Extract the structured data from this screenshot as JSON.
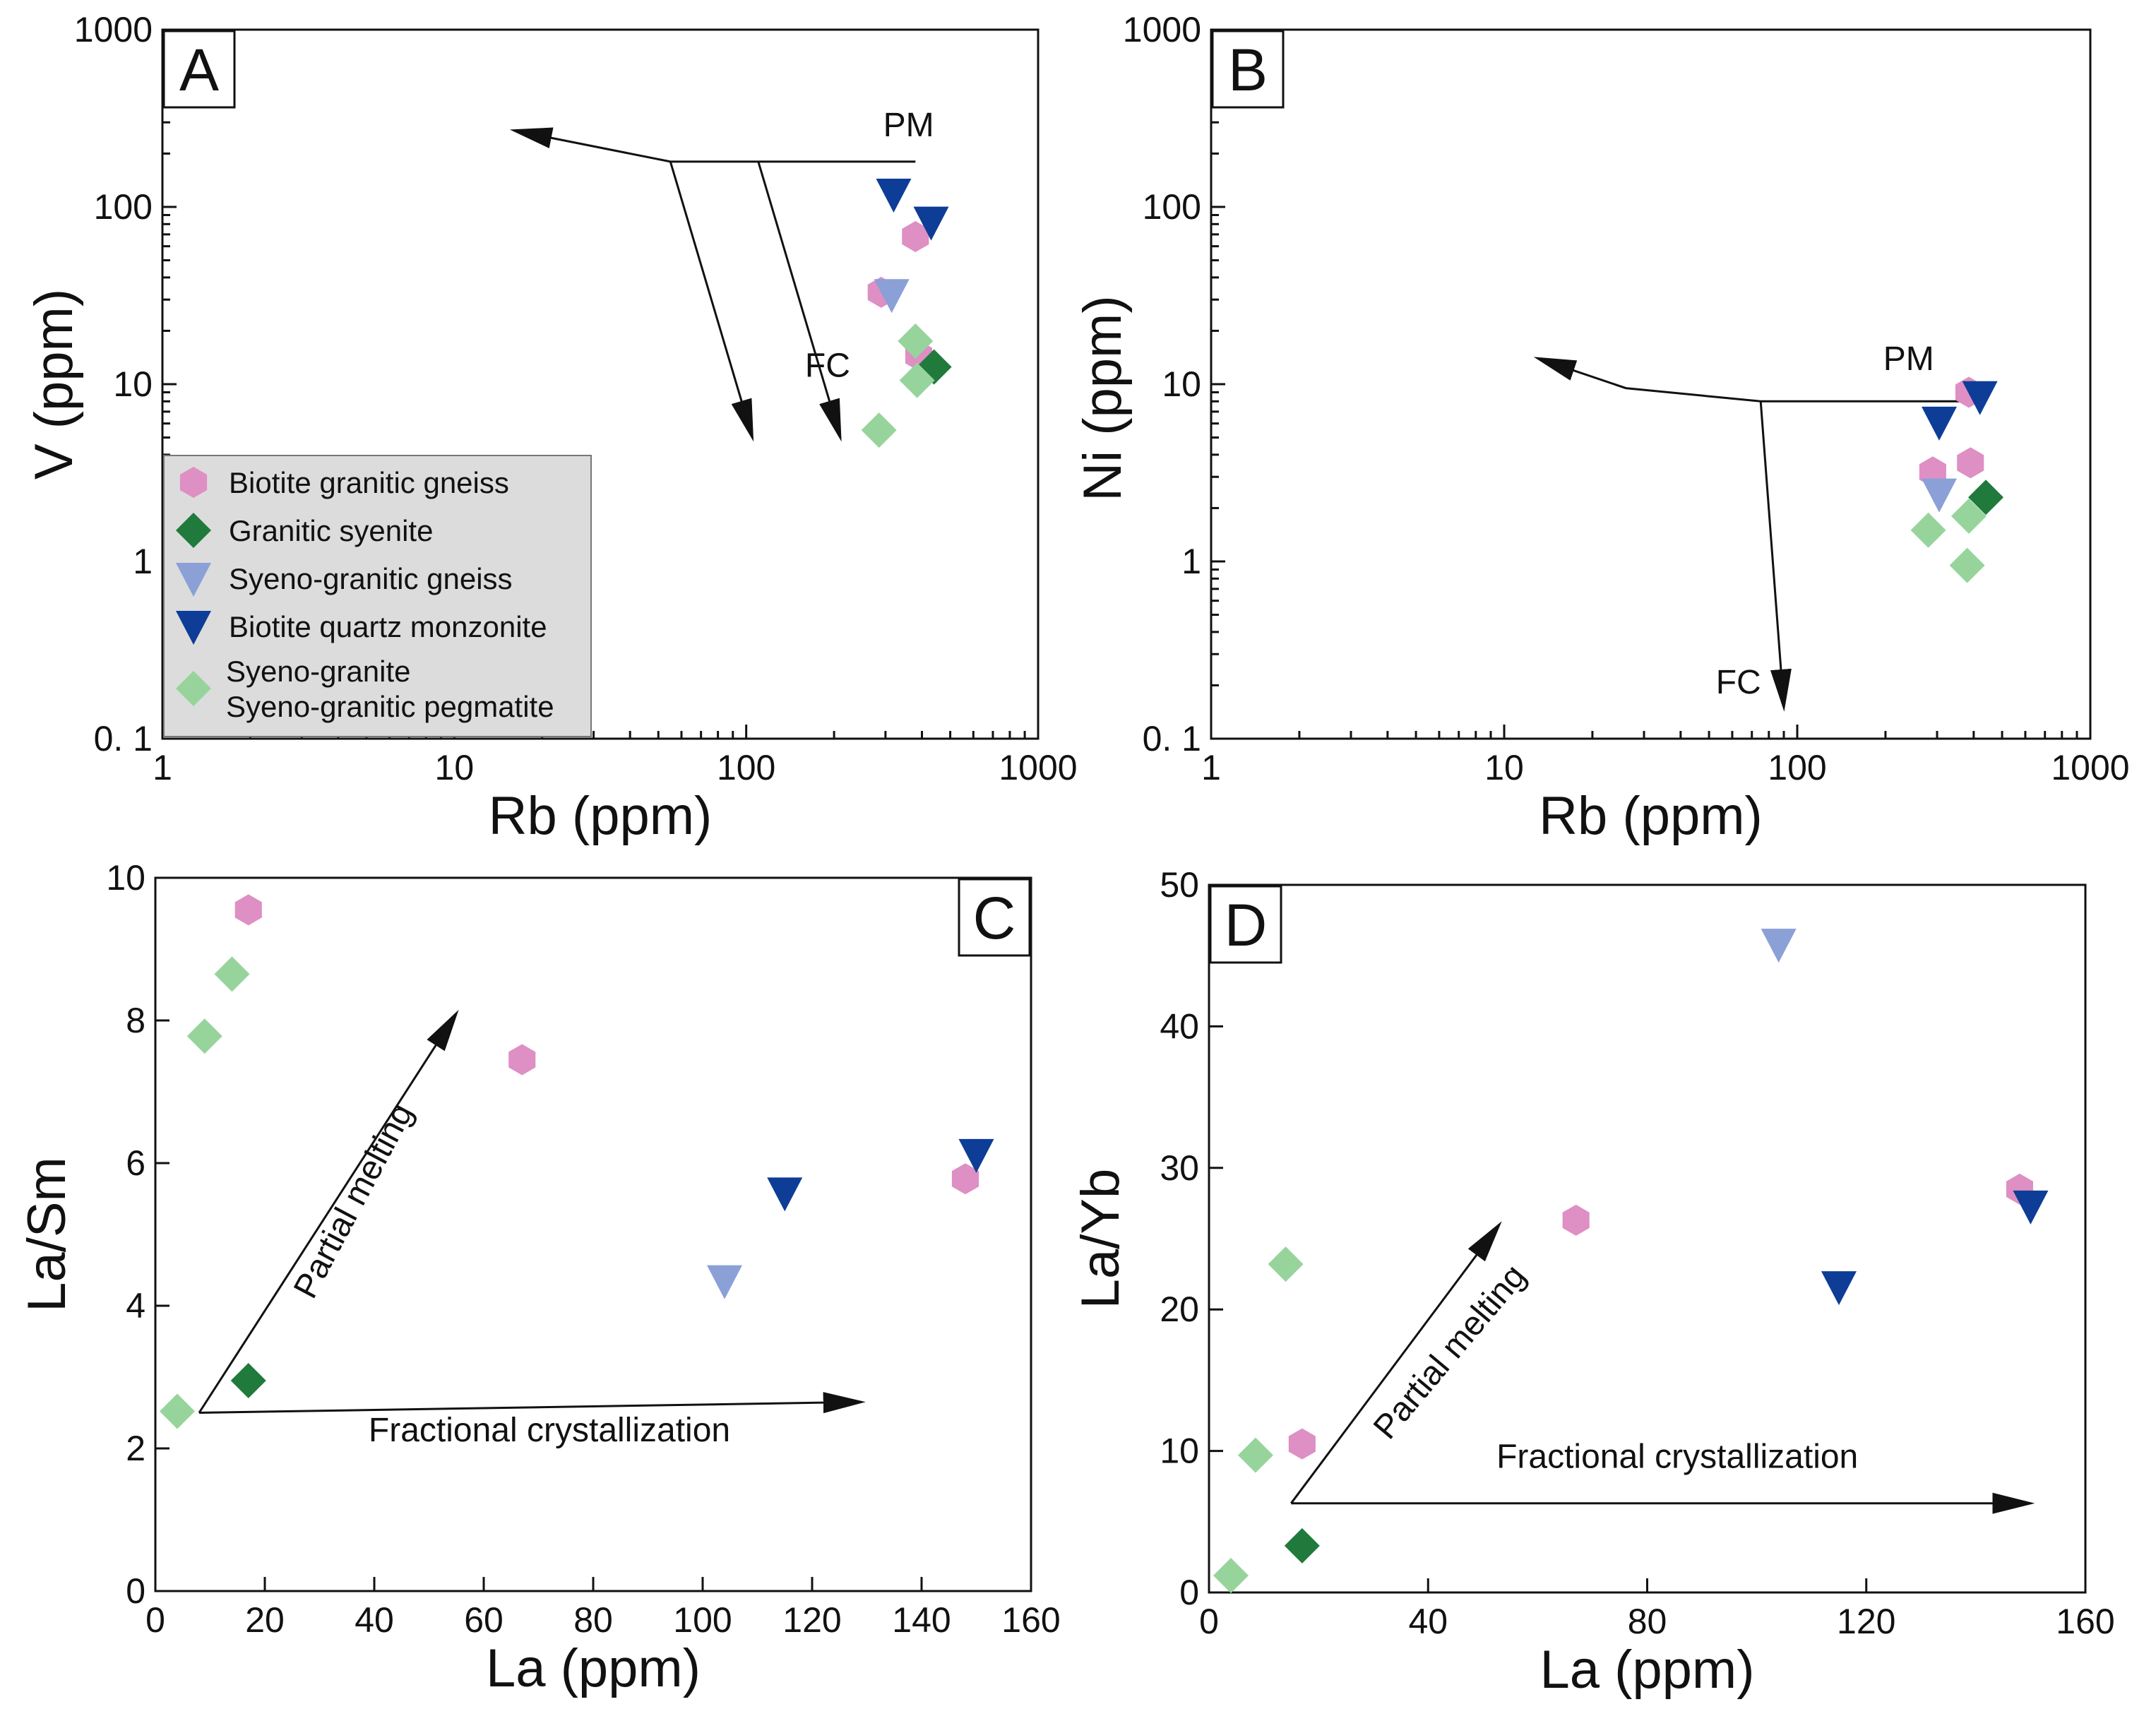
{
  "colors": {
    "biotite_granitic_gneiss": "#de8fc4",
    "granitic_syenite": "#1f7a3c",
    "syeno_granitic_gneiss": "#8aa0d6",
    "biotite_quartz_monzonite": "#0d3d96",
    "syeno_granite": "#97d49c"
  },
  "legend": {
    "entries": [
      {
        "key": "biotite_granitic_gneiss",
        "marker": "hexagon",
        "lines": [
          "Biotite granitic gneiss"
        ]
      },
      {
        "key": "granitic_syenite",
        "marker": "diamond",
        "lines": [
          "Granitic syenite"
        ]
      },
      {
        "key": "syeno_granitic_gneiss",
        "marker": "triangle-down",
        "lines": [
          "Syeno-granitic gneiss"
        ]
      },
      {
        "key": "biotite_quartz_monzonite",
        "marker": "triangle-down",
        "lines": [
          "Biotite quartz monzonite"
        ]
      },
      {
        "key": "syeno_granite",
        "marker": "diamond",
        "lines": [
          "Syeno-granite",
          "Syeno-granitic pegmatite"
        ]
      }
    ]
  },
  "chart_data": [
    {
      "panel": "A",
      "type": "scatter",
      "xlabel": "Rb (ppm)",
      "ylabel": "V (ppm)",
      "xscale": "log",
      "yscale": "log",
      "xlim": [
        1,
        1000
      ],
      "ylim": [
        0.1,
        1000
      ],
      "xticks": [
        1,
        10,
        100,
        1000
      ],
      "xtick_labels": [
        "1",
        "10",
        "100",
        "1000"
      ],
      "yticks": [
        0.1,
        1,
        10,
        100,
        1000
      ],
      "ytick_labels": [
        "0. 1",
        "1",
        "10",
        "100",
        "1000"
      ],
      "series": [
        {
          "name": "Biotite granitic gneiss",
          "key": "biotite_granitic_gneiss",
          "marker": "hexagon",
          "points": [
            [
              380,
              68
            ],
            [
              290,
              33
            ],
            [
              390,
              14.5
            ]
          ]
        },
        {
          "name": "Granitic syenite",
          "key": "granitic_syenite",
          "marker": "diamond",
          "points": [
            [
              440,
              12.5
            ]
          ]
        },
        {
          "name": "Syeno-granitic gneiss",
          "key": "syeno_granitic_gneiss",
          "marker": "triangle-down",
          "points": [
            [
              315,
              32
            ]
          ]
        },
        {
          "name": "Biotite quartz monzonite",
          "key": "biotite_quartz_monzonite",
          "marker": "triangle-down",
          "points": [
            [
              320,
              118
            ],
            [
              430,
              82
            ]
          ]
        },
        {
          "name": "Syeno-granite / Syeno-granitic pegmatite",
          "key": "syeno_granite",
          "marker": "diamond",
          "points": [
            [
              380,
              17.5
            ],
            [
              385,
              10.5
            ],
            [
              285,
              5.5
            ]
          ]
        }
      ],
      "trend_lines": [
        {
          "points": [
            [
              380,
              180
            ],
            [
              55,
              180
            ],
            [
              16,
              270
            ]
          ],
          "arrow": true
        },
        {
          "points": [
            [
              55,
              180
            ],
            [
              105,
              5
            ]
          ],
          "arrow": true
        },
        {
          "points": [
            [
              110,
              180
            ],
            [
              210,
              5
            ]
          ],
          "arrow": true
        }
      ],
      "annotations": [
        {
          "text": "PM",
          "at": [
            360,
            250
          ]
        },
        {
          "text": "FC",
          "at": [
            190,
            11
          ]
        }
      ],
      "legend_position": "bottom-left"
    },
    {
      "panel": "B",
      "type": "scatter",
      "xlabel": "Rb (ppm)",
      "ylabel": "Ni (ppm)",
      "xscale": "log",
      "yscale": "log",
      "xlim": [
        1,
        1000
      ],
      "ylim": [
        0.1,
        1000
      ],
      "xticks": [
        1,
        10,
        100,
        1000
      ],
      "xtick_labels": [
        "1",
        "10",
        "100",
        "1000"
      ],
      "yticks": [
        0.1,
        1,
        10,
        100,
        1000
      ],
      "ytick_labels": [
        "0. 1",
        "1",
        "10",
        "100",
        "1000"
      ],
      "series": [
        {
          "name": "Biotite granitic gneiss",
          "key": "biotite_granitic_gneiss",
          "marker": "hexagon",
          "points": [
            [
              385,
              9
            ],
            [
              290,
              3.2
            ],
            [
              390,
              3.6
            ]
          ]
        },
        {
          "name": "Granitic syenite",
          "key": "granitic_syenite",
          "marker": "diamond",
          "points": [
            [
              440,
              2.3
            ]
          ]
        },
        {
          "name": "Syeno-granitic gneiss",
          "key": "syeno_granitic_gneiss",
          "marker": "triangle-down",
          "points": [
            [
              305,
              2.4
            ]
          ]
        },
        {
          "name": "Biotite quartz monzonite",
          "key": "biotite_quartz_monzonite",
          "marker": "triangle-down",
          "points": [
            [
              305,
              6.1
            ],
            [
              420,
              8.5
            ]
          ]
        },
        {
          "name": "Syeno-granite / Syeno-granitic pegmatite",
          "key": "syeno_granite",
          "marker": "diamond",
          "points": [
            [
              280,
              1.5
            ],
            [
              385,
              1.8
            ],
            [
              380,
              0.95
            ]
          ]
        }
      ],
      "trend_lines": [
        {
          "points": [
            [
              400,
              8
            ],
            [
              75,
              8
            ],
            [
              26,
              9.5
            ],
            [
              13,
              14
            ]
          ],
          "arrow": true
        },
        {
          "points": [
            [
              75,
              8
            ],
            [
              90,
              0.15
            ]
          ],
          "arrow": true
        }
      ],
      "annotations": [
        {
          "text": "PM",
          "at": [
            240,
            12
          ]
        },
        {
          "text": "FC",
          "at": [
            63,
            0.18
          ]
        }
      ]
    },
    {
      "panel": "C",
      "type": "scatter",
      "xlabel": "La (ppm)",
      "ylabel": "La/Sm",
      "xscale": "linear",
      "yscale": "linear",
      "xlim": [
        0,
        160
      ],
      "ylim": [
        0,
        10
      ],
      "xticks": [
        0,
        20,
        40,
        60,
        80,
        100,
        120,
        140,
        160
      ],
      "xtick_labels": [
        "0",
        "20",
        "40",
        "60",
        "80",
        "100",
        "120",
        "140",
        "160"
      ],
      "yticks": [
        0,
        2,
        4,
        6,
        8,
        10
      ],
      "ytick_labels": [
        "0",
        "2",
        "4",
        "6",
        "8",
        "10"
      ],
      "series": [
        {
          "name": "Biotite granitic gneiss",
          "key": "biotite_granitic_gneiss",
          "marker": "hexagon",
          "points": [
            [
              17,
              9.55
            ],
            [
              67,
              7.45
            ],
            [
              148,
              5.78
            ]
          ]
        },
        {
          "name": "Granitic syenite",
          "key": "granitic_syenite",
          "marker": "diamond",
          "points": [
            [
              17,
              2.95
            ]
          ]
        },
        {
          "name": "Syeno-granitic gneiss",
          "key": "syeno_granitic_gneiss",
          "marker": "triangle-down",
          "points": [
            [
              104,
              4.35
            ]
          ]
        },
        {
          "name": "Biotite quartz monzonite",
          "key": "biotite_quartz_monzonite",
          "marker": "triangle-down",
          "points": [
            [
              115,
              5.58
            ],
            [
              150,
              6.12
            ]
          ]
        },
        {
          "name": "Syeno-granite / Syeno-granitic pegmatite",
          "key": "syeno_granite",
          "marker": "diamond",
          "points": [
            [
              4,
              2.52
            ],
            [
              9,
              7.78
            ],
            [
              14,
              8.65
            ]
          ]
        }
      ],
      "trend_lines": [
        {
          "points": [
            [
              8,
              2.5
            ],
            [
              55,
              8.1
            ]
          ],
          "arrow": true
        },
        {
          "points": [
            [
              8,
              2.5
            ],
            [
              129,
              2.65
            ]
          ],
          "arrow": true
        }
      ],
      "annotations": [
        {
          "text": "Partial melting",
          "at": [
            38,
            5.4
          ],
          "rotate": -62
        },
        {
          "text": "Fractional crystallization",
          "at": [
            72,
            2.1
          ]
        }
      ]
    },
    {
      "panel": "D",
      "type": "scatter",
      "xlabel": "La (ppm)",
      "ylabel": "La/Yb",
      "xscale": "linear",
      "yscale": "linear",
      "xlim": [
        0,
        160
      ],
      "ylim": [
        0,
        50
      ],
      "xticks": [
        0,
        40,
        80,
        120,
        160
      ],
      "xtick_labels": [
        "0",
        "40",
        "80",
        "120",
        "160"
      ],
      "yticks": [
        0,
        10,
        20,
        30,
        40,
        50
      ],
      "ytick_labels": [
        "0",
        "10",
        "20",
        "30",
        "40",
        "50"
      ],
      "series": [
        {
          "name": "Biotite granitic gneiss",
          "key": "biotite_granitic_gneiss",
          "marker": "hexagon",
          "points": [
            [
              17,
              10.5
            ],
            [
              67,
              26.3
            ],
            [
              148,
              28.5
            ]
          ]
        },
        {
          "name": "Granitic syenite",
          "key": "granitic_syenite",
          "marker": "diamond",
          "points": [
            [
              17,
              3.3
            ]
          ]
        },
        {
          "name": "Syeno-granitic gneiss",
          "key": "syeno_granitic_gneiss",
          "marker": "triangle-down",
          "points": [
            [
              104,
              45.8
            ]
          ]
        },
        {
          "name": "Biotite quartz monzonite",
          "key": "biotite_quartz_monzonite",
          "marker": "triangle-down",
          "points": [
            [
              115,
              21.6
            ],
            [
              150,
              27.3
            ]
          ]
        },
        {
          "name": "Syeno-granite / Syeno-granitic pegmatite",
          "key": "syeno_granite",
          "marker": "diamond",
          "points": [
            [
              4,
              1.2
            ],
            [
              8.5,
              9.7
            ],
            [
              14,
              23.2
            ]
          ]
        }
      ],
      "trend_lines": [
        {
          "points": [
            [
              15,
              6.3
            ],
            [
              53,
              26
            ]
          ],
          "arrow": true
        },
        {
          "points": [
            [
              15,
              6.3
            ],
            [
              150,
              6.3
            ]
          ],
          "arrow": true
        }
      ],
      "annotations": [
        {
          "text": "Partial melting",
          "at": [
            45.5,
            16.5
          ],
          "rotate": -50
        },
        {
          "text": "Fractional crystallization",
          "at": [
            85.5,
            8.8
          ]
        }
      ]
    }
  ]
}
